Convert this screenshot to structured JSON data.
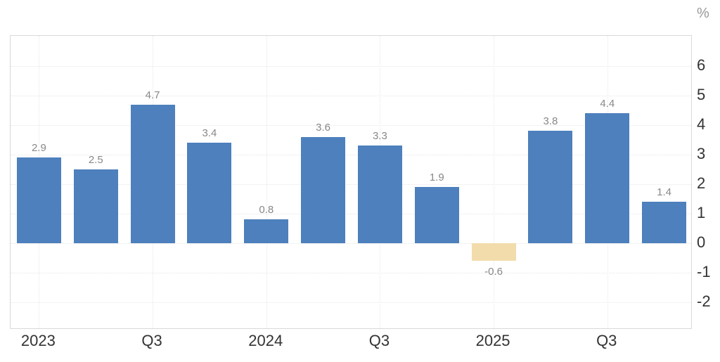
{
  "colors": {
    "bar": "#4d80bd",
    "bar_highlight": "#f2dcab",
    "grid": "#e7e7e7",
    "plot_border": "#d9d9d9",
    "value_label": "#888888",
    "axis_label": "#333333",
    "unit_label": "#999999",
    "background": "#ffffff"
  },
  "chart_data": {
    "type": "bar",
    "title": "",
    "xlabel": "",
    "ylabel": "%",
    "ylim": [
      -2.9,
      7.0
    ],
    "grid": true,
    "legend": "none",
    "y_axis_side": "right",
    "y_ticks": [
      6,
      5,
      4,
      3,
      2,
      1,
      0,
      -1,
      -2
    ],
    "y_tick_labels": [
      "6",
      "5",
      "4",
      "3",
      "2",
      "1",
      "0",
      "-1",
      "-2"
    ],
    "x_ticks": [
      {
        "slot": 0,
        "label": "2023"
      },
      {
        "slot": 2,
        "label": "Q3"
      },
      {
        "slot": 4,
        "label": "2024"
      },
      {
        "slot": 6,
        "label": "Q3"
      },
      {
        "slot": 8,
        "label": "2025"
      },
      {
        "slot": 10,
        "label": "Q3"
      }
    ],
    "bars": [
      {
        "value": 2.9,
        "label": "2.9",
        "highlight": false
      },
      {
        "value": 2.5,
        "label": "2.5",
        "highlight": false
      },
      {
        "value": 4.7,
        "label": "4.7",
        "highlight": false
      },
      {
        "value": 3.4,
        "label": "3.4",
        "highlight": false
      },
      {
        "value": 0.8,
        "label": "0.8",
        "highlight": false
      },
      {
        "value": 3.6,
        "label": "3.6",
        "highlight": false
      },
      {
        "value": 3.3,
        "label": "3.3",
        "highlight": false
      },
      {
        "value": 1.9,
        "label": "1.9",
        "highlight": false
      },
      {
        "value": -0.6,
        "label": "-0.6",
        "highlight": true
      },
      {
        "value": 3.8,
        "label": "3.8",
        "highlight": false
      },
      {
        "value": 4.4,
        "label": "4.4",
        "highlight": false
      },
      {
        "value": 1.4,
        "label": "1.4",
        "highlight": false
      }
    ]
  }
}
